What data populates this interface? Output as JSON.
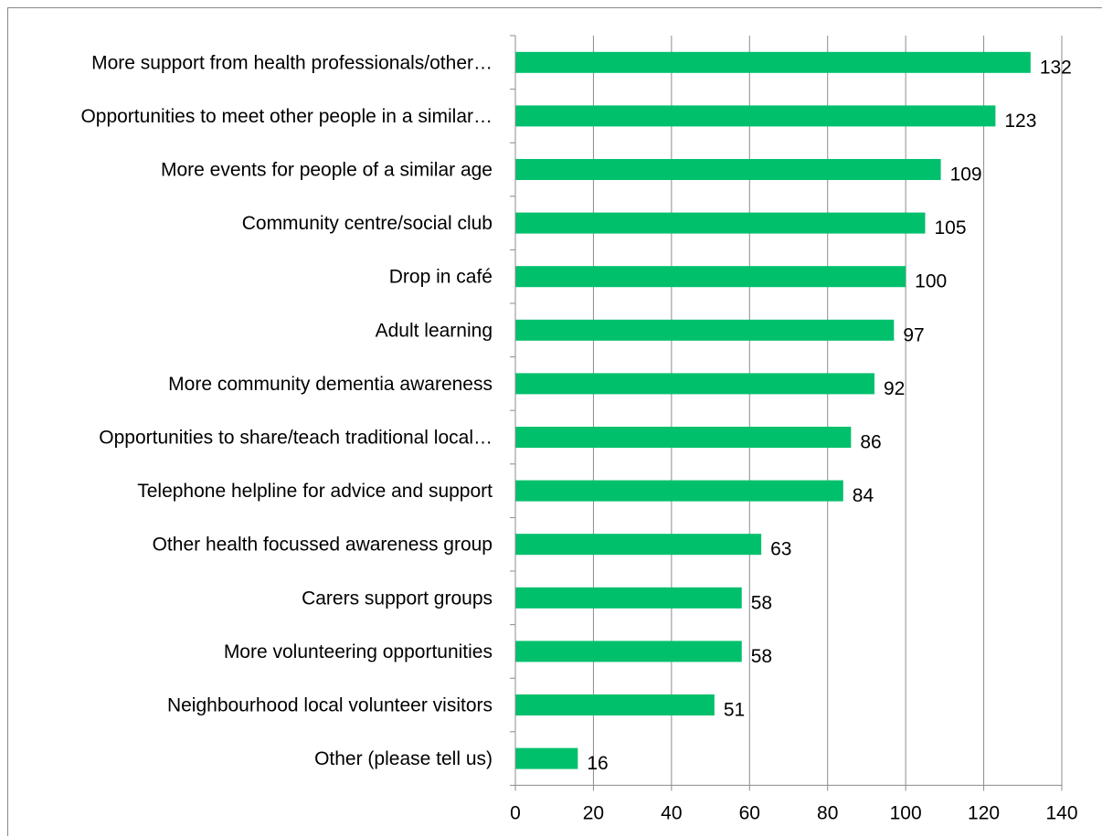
{
  "chart_data": {
    "type": "bar",
    "orientation": "horizontal",
    "title": "",
    "xlabel": "",
    "ylabel": "",
    "xlim": [
      0,
      140
    ],
    "x_ticks": [
      0,
      20,
      40,
      60,
      80,
      100,
      120,
      140
    ],
    "grid": "vertical",
    "legend": "none",
    "bar_color": "#00c06c",
    "categories": [
      "More support from health professionals/other…",
      "Opportunities to meet other people in a similar…",
      "More events for people of a similar age",
      "Community centre/social club",
      "Drop in café",
      "Adult learning",
      "More community dementia awareness",
      "Opportunities to share/teach traditional local…",
      "Telephone helpline for advice and support",
      "Other health focussed awareness group",
      "Carers support groups",
      "More volunteering opportunities",
      "Neighbourhood local volunteer visitors",
      "Other (please tell us)"
    ],
    "values": [
      132,
      123,
      109,
      105,
      100,
      97,
      92,
      86,
      84,
      63,
      58,
      58,
      51,
      16
    ]
  }
}
